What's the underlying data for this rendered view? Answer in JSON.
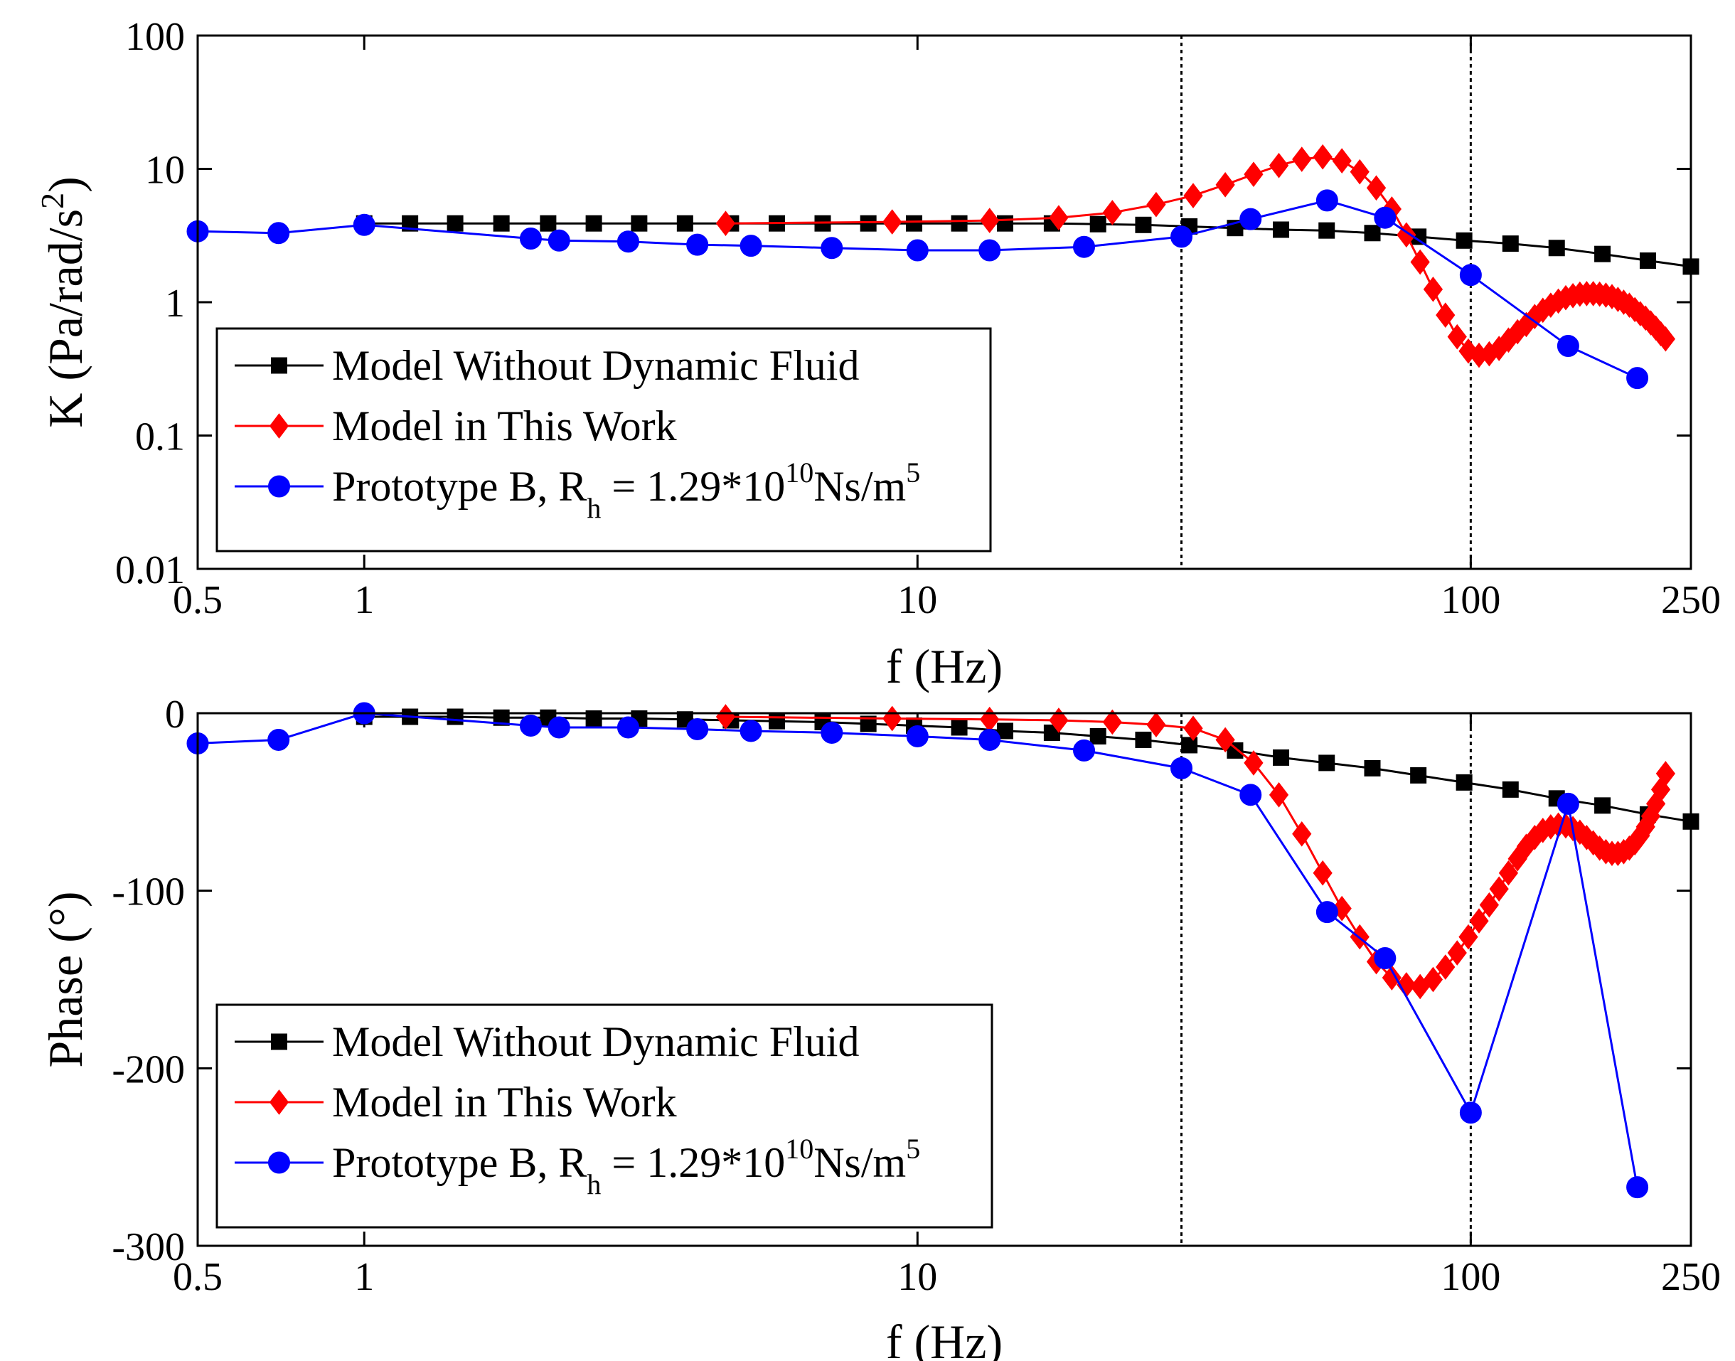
{
  "chart_data": [
    {
      "type": "line",
      "xscale": "log",
      "yscale": "log",
      "xlabel": "f (Hz)",
      "ylabel": "K (Pa/rad/s",
      "ylabel_sup": "2",
      "ylabel_end": ")",
      "xlim": [
        0.5,
        250
      ],
      "ylim": [
        0.01,
        100
      ],
      "xticks": [
        {
          "v": 0.5,
          "label": "0.5"
        },
        {
          "v": 1,
          "label": "1"
        },
        {
          "v": 10,
          "label": "10"
        },
        {
          "v": 100,
          "label": "100"
        },
        {
          "v": 250,
          "label": "250"
        }
      ],
      "yticks": [
        {
          "v": 100,
          "label": "100"
        },
        {
          "v": 10,
          "label": "10"
        },
        {
          "v": 1,
          "label": "1"
        },
        {
          "v": 0.1,
          "label": "0.1"
        },
        {
          "v": 0.01,
          "label": "0.01"
        }
      ],
      "vlines": [
        30,
        100
      ],
      "legend_position": "bottom-left",
      "series": [
        {
          "name": "Model Without Dynamic Fluid",
          "color": "#000000",
          "marker": "square",
          "x": [
            1.0,
            1.21,
            1.46,
            1.77,
            2.15,
            2.6,
            3.14,
            3.8,
            4.6,
            5.57,
            6.74,
            8.15,
            9.86,
            11.9,
            14.4,
            17.5,
            21.2,
            25.6,
            31,
            37.5,
            45.4,
            54.9,
            66.4,
            80.4,
            97.3,
            118,
            143,
            173,
            209,
            250
          ],
          "y": [
            3.9,
            3.9,
            3.9,
            3.9,
            3.9,
            3.9,
            3.9,
            3.9,
            3.9,
            3.9,
            3.9,
            3.9,
            3.9,
            3.9,
            3.9,
            3.9,
            3.85,
            3.8,
            3.7,
            3.6,
            3.5,
            3.45,
            3.3,
            3.1,
            2.9,
            2.75,
            2.55,
            2.3,
            2.05,
            1.85
          ]
        },
        {
          "name": "Model in This Work",
          "color": "#ff0000",
          "marker": "diamond",
          "x": [
            4.5,
            9.0,
            13.5,
            18.0,
            22.5,
            27,
            31.5,
            36,
            40.5,
            45,
            49.5,
            54,
            58.5,
            63,
            67.5,
            72,
            76.5,
            81,
            85.5,
            90,
            94.5,
            99,
            103.5,
            108,
            112.5,
            117,
            121.5,
            126,
            130.5,
            135,
            139.5,
            144,
            148.5,
            153,
            157.5,
            162,
            166.5,
            171,
            175.5,
            180,
            184.5,
            189,
            193.5,
            198,
            202.5,
            207,
            211.5,
            216,
            220.5,
            225
          ],
          "y": [
            3.9,
            4.0,
            4.1,
            4.3,
            4.7,
            5.4,
            6.3,
            7.6,
            9.1,
            10.6,
            11.8,
            12.3,
            11.5,
            9.5,
            7.2,
            5.0,
            3.2,
            2.0,
            1.25,
            0.8,
            0.55,
            0.43,
            0.4,
            0.41,
            0.45,
            0.52,
            0.6,
            0.68,
            0.78,
            0.87,
            0.95,
            1.02,
            1.08,
            1.12,
            1.15,
            1.16,
            1.16,
            1.15,
            1.13,
            1.1,
            1.05,
            1.0,
            0.95,
            0.88,
            0.82,
            0.76,
            0.7,
            0.64,
            0.58,
            0.53
          ]
        },
        {
          "name": "Prototype B, R",
          "name_sub": "h",
          "name_tail": " = 1.29*10",
          "name_sup": "10",
          "name_unit": "Ns/m",
          "name_unit_sup": "5",
          "color": "#0000ff",
          "marker": "circle",
          "x": [
            0.5,
            0.7,
            1.0,
            2.0,
            2.25,
            3.0,
            4.0,
            5.0,
            7.0,
            10.0,
            13.5,
            20.0,
            30.0,
            40.0,
            55.0,
            70.0,
            100.0,
            150.0,
            200.0
          ],
          "y": [
            3.4,
            3.3,
            3.8,
            3.0,
            2.9,
            2.85,
            2.7,
            2.65,
            2.55,
            2.45,
            2.45,
            2.6,
            3.1,
            4.2,
            5.8,
            4.3,
            1.6,
            0.47,
            0.27
          ]
        }
      ]
    },
    {
      "type": "line",
      "xscale": "log",
      "yscale": "linear",
      "xlabel": "f (Hz)",
      "ylabel": "Phase (°)",
      "xlim": [
        0.5,
        250
      ],
      "ylim": [
        -300,
        0
      ],
      "xticks": [
        {
          "v": 0.5,
          "label": "0.5"
        },
        {
          "v": 1,
          "label": "1"
        },
        {
          "v": 10,
          "label": "10"
        },
        {
          "v": 100,
          "label": "100"
        },
        {
          "v": 250,
          "label": "250"
        }
      ],
      "yticks": [
        {
          "v": 0,
          "label": "0"
        },
        {
          "v": -100,
          "label": "-100"
        },
        {
          "v": -200,
          "label": "-200"
        },
        {
          "v": -300,
          "label": "-300"
        }
      ],
      "vlines": [
        30,
        100
      ],
      "legend_position": "bottom-left",
      "series": [
        {
          "name": "Model Without Dynamic Fluid",
          "color": "#000000",
          "marker": "square",
          "x": [
            1.0,
            1.21,
            1.46,
            1.77,
            2.15,
            2.6,
            3.14,
            3.8,
            4.6,
            5.57,
            6.74,
            8.15,
            9.86,
            11.9,
            14.4,
            17.5,
            21.2,
            25.6,
            31,
            37.5,
            45.4,
            54.9,
            66.4,
            80.4,
            97.3,
            118,
            143,
            173,
            209,
            250
          ],
          "y": [
            -2,
            -2,
            -2,
            -2.5,
            -2.5,
            -3,
            -3,
            -3.5,
            -4,
            -4.5,
            -5,
            -6,
            -7,
            -8,
            -10,
            -11,
            -13,
            -15,
            -18,
            -21,
            -25,
            -28,
            -31,
            -35,
            -39,
            -43,
            -48,
            -52,
            -57,
            -61
          ]
        },
        {
          "name": "Model in This Work",
          "color": "#ff0000",
          "marker": "diamond",
          "x": [
            4.5,
            9.0,
            13.5,
            18.0,
            22.5,
            27,
            31.5,
            36,
            40.5,
            45,
            49.5,
            54,
            58.5,
            63,
            67.5,
            72,
            76.5,
            81,
            85.5,
            90,
            94.5,
            99,
            103.5,
            108,
            112.5,
            117,
            121.5,
            126,
            130.5,
            135,
            139.5,
            144,
            148.5,
            153,
            157.5,
            162,
            166.5,
            171,
            175.5,
            180,
            184.5,
            189,
            193.5,
            198,
            202.5,
            207,
            211.5,
            216,
            220.5,
            225
          ],
          "y": [
            -2,
            -3,
            -3.5,
            -4,
            -5,
            -6.5,
            -8.5,
            -15,
            -28,
            -46,
            -68,
            -90,
            -110,
            -126,
            -140,
            -149,
            -153,
            -154,
            -150,
            -143,
            -135,
            -126,
            -117,
            -108,
            -99,
            -90,
            -82,
            -75,
            -70,
            -66,
            -64,
            -63,
            -63.5,
            -65,
            -67,
            -70,
            -73,
            -76,
            -78,
            -79,
            -79,
            -78,
            -76,
            -73,
            -69,
            -64,
            -58,
            -51,
            -43,
            -34
          ]
        },
        {
          "name": "Prototype B, R",
          "name_sub": "h",
          "name_tail": " = 1.29*10",
          "name_sup": "10",
          "name_unit": "Ns/m",
          "name_unit_sup": "5",
          "color": "#0000ff",
          "marker": "circle",
          "x": [
            0.5,
            0.7,
            1.0,
            2.0,
            2.25,
            3.0,
            4.0,
            5.0,
            7.0,
            10.0,
            13.5,
            20.0,
            30.0,
            40.0,
            55.0,
            70.0,
            100.0,
            150.0,
            200.0
          ],
          "y": [
            -17,
            -15,
            0,
            -7,
            -8,
            -8,
            -9,
            -10,
            -11,
            -13,
            -15,
            -21,
            -31,
            -46,
            -112,
            -138,
            -225,
            -51,
            -267
          ]
        }
      ]
    }
  ]
}
